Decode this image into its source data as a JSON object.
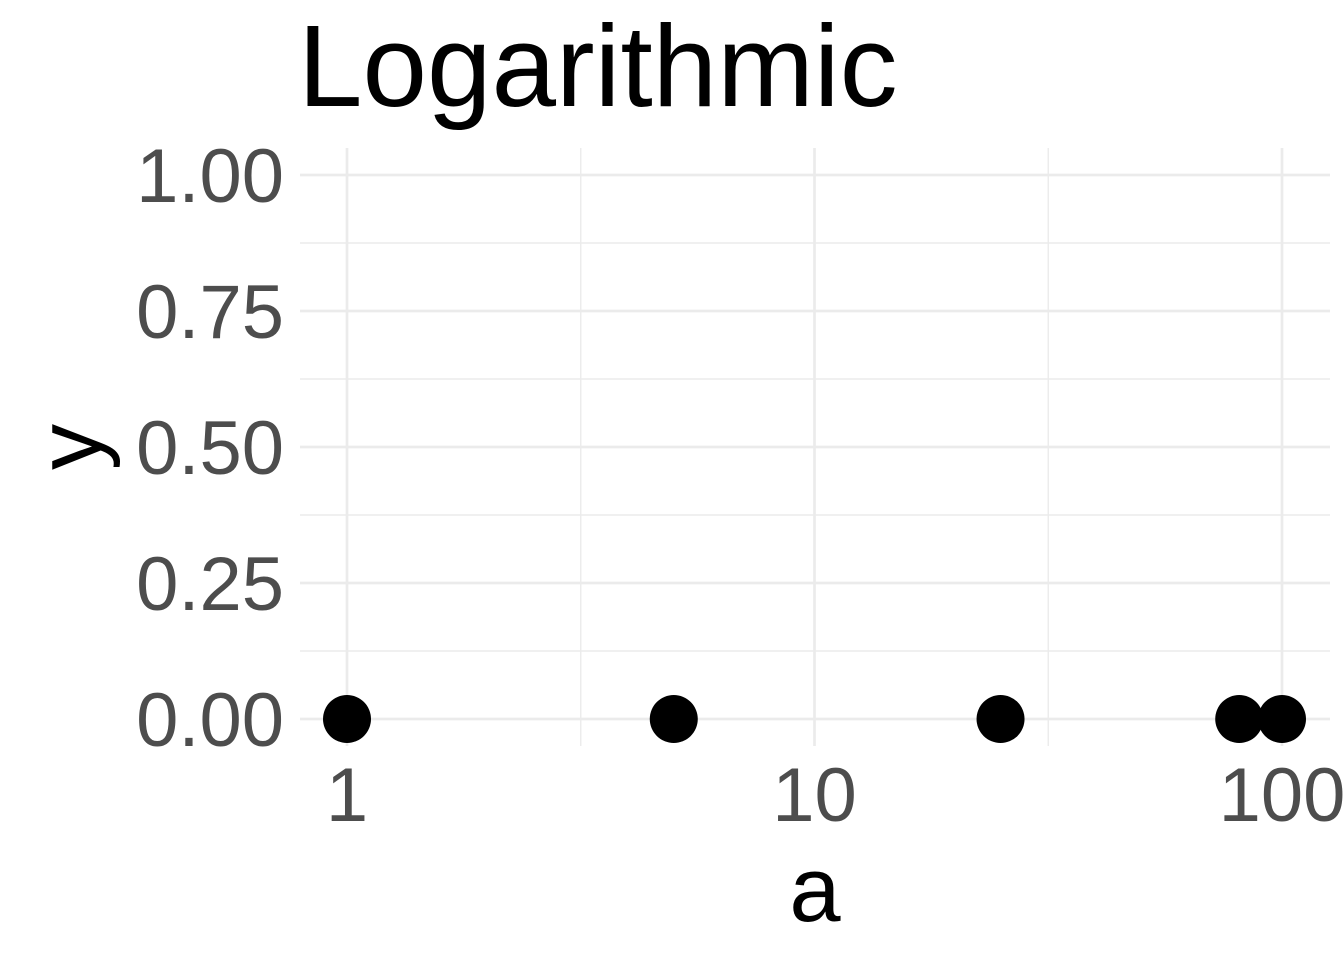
{
  "chart_data": {
    "type": "scatter",
    "title": "Logarithmic",
    "xlabel": "a",
    "ylabel": "y",
    "x_scale": "log10",
    "xlim": [
      1,
      100
    ],
    "ylim": [
      0,
      1
    ],
    "x_ticks": [
      1,
      10,
      100
    ],
    "x_tick_labels": [
      "1",
      "10",
      "100"
    ],
    "y_ticks": [
      0,
      0.25,
      0.5,
      0.75,
      1
    ],
    "y_tick_labels": [
      "0.00",
      "0.25",
      "0.50",
      "0.75",
      "1.00"
    ],
    "grid": true,
    "legend": "none",
    "point_color": "#000000",
    "series": [
      {
        "x": [
          1,
          5,
          25,
          81,
          100
        ],
        "y": [
          0,
          0,
          0,
          0,
          0
        ]
      }
    ]
  }
}
